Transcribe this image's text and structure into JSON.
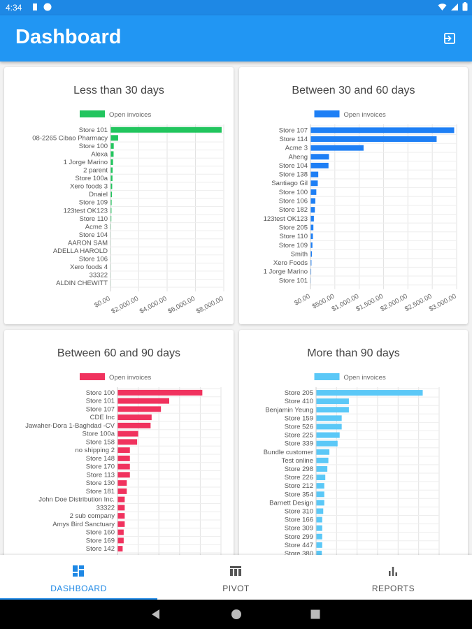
{
  "status_bar": {
    "time": "4:34"
  },
  "app_bar": {
    "title": "Dashboard"
  },
  "legend_label": "Open invoices",
  "charts": [
    {
      "title": "Less than 30 days",
      "color": "#22c55e",
      "xmax": 8000,
      "ticks": [
        "$0.00",
        "$2,000.00",
        "$4,000.00",
        "$6,000.00",
        "$8,000.00"
      ],
      "categories": [
        "Store 101",
        "08-2265 Cibao Pharmacy",
        "Store 100",
        "Alexa",
        "1 Jorge Marino",
        "2 parent",
        "Store 100a",
        "Xero foods 3",
        "Dnaiel",
        "Store 109",
        "123test OK123",
        "Store 110",
        "Acme 3",
        "Store 104",
        "AARON SAM",
        "ADELLA HAROLD",
        "Store 106",
        "Xero foods 4",
        "33322",
        "ALDIN CHEWITT"
      ],
      "values": [
        7850,
        540,
        230,
        220,
        180,
        150,
        140,
        120,
        100,
        80,
        70,
        60,
        40,
        30,
        20,
        15,
        10,
        8,
        5,
        3
      ]
    },
    {
      "title": "Between 30 and 60 days",
      "color": "#1e7ff5",
      "xmax": 3000,
      "ticks": [
        "$0.00",
        "$500.00",
        "$1,000.00",
        "$1,500.00",
        "$2,000.00",
        "$2,500.00",
        "$3,000.00"
      ],
      "categories": [
        "Store 107",
        "Store 114",
        "Acme 3",
        "Aheng",
        "Store 104",
        "Store 138",
        "Santiago Gil",
        "Store 100",
        "Store 106",
        "Store 182",
        "123test OK123",
        "Store 205",
        "Store 110",
        "Store 109",
        "Smith",
        "Xero Foods",
        "1 Jorge Marino",
        "Store 101"
      ],
      "values": [
        2950,
        2590,
        1090,
        380,
        370,
        160,
        150,
        120,
        100,
        90,
        70,
        60,
        50,
        40,
        30,
        20,
        15,
        10
      ]
    },
    {
      "title": "Between 60 and 90 days",
      "color": "#f0325e",
      "xmax": 5,
      "ticks": [
        "",
        "",
        "",
        "",
        "",
        ""
      ],
      "categories": [
        "Store 100",
        "Store 101",
        "Store 107",
        "CDE Inc",
        "Jawaher-Dora 1-Baghdad -CV",
        "Store 100a",
        "Store 158",
        "no shipping 2",
        "Store 148",
        "Store 170",
        "Store 113",
        "Store 130",
        "Store 181",
        "John Doe Distribution Inc.",
        "33322",
        "2 sub company",
        "Amys Bird Sanctuary",
        "Store 160",
        "Store 169",
        "Store 142"
      ],
      "values": [
        4.1,
        2.5,
        2.1,
        1.65,
        1.6,
        1.0,
        0.95,
        0.6,
        0.6,
        0.6,
        0.6,
        0.45,
        0.45,
        0.35,
        0.35,
        0.35,
        0.35,
        0.3,
        0.3,
        0.25
      ]
    },
    {
      "title": "More than 90 days",
      "color": "#5bc8f7",
      "xmax": 6,
      "ticks": [
        "",
        "",
        "",
        "",
        "",
        "",
        ""
      ],
      "categories": [
        "Store 205",
        "Store 410",
        "Benjamin Yeung",
        "Store 159",
        "Store 526",
        "Store 225",
        "Store 339",
        "Bundle customer",
        "Test online",
        "Store 298",
        "Store 226",
        "Store 212",
        "Store 354",
        "Barnett Design",
        "Store 310",
        "Store 166",
        "Store 309",
        "Store 299",
        "Store 447",
        "Store 380"
      ],
      "values": [
        5.2,
        1.6,
        1.6,
        1.25,
        1.25,
        1.15,
        1.05,
        0.65,
        0.6,
        0.55,
        0.45,
        0.4,
        0.4,
        0.4,
        0.35,
        0.3,
        0.3,
        0.3,
        0.3,
        0.28
      ]
    }
  ],
  "bottom_nav": {
    "items": [
      {
        "label": "DASHBOARD"
      },
      {
        "label": "PIVOT"
      },
      {
        "label": "REPORTS"
      }
    ]
  }
}
